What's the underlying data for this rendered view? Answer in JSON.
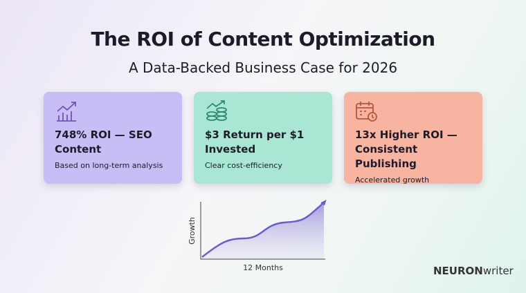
{
  "header": {
    "title": "The ROI of Content Optimization",
    "subtitle": "A Data-Backed Business Case for 2026"
  },
  "cards": [
    {
      "title": "748% ROI — SEO Content",
      "subtitle": "Based on long-term analysis"
    },
    {
      "title": "$3 Return per $1 Invested",
      "subtitle": "Clear cost-efficiency"
    },
    {
      "title": "13x Higher ROI — Consistent Publishing",
      "subtitle": "Accelerated growth"
    }
  ],
  "illustration": {
    "y_label": "Growth",
    "x_label": "12 Months"
  },
  "brand": {
    "bold": "NEURON",
    "light": "writer"
  }
}
